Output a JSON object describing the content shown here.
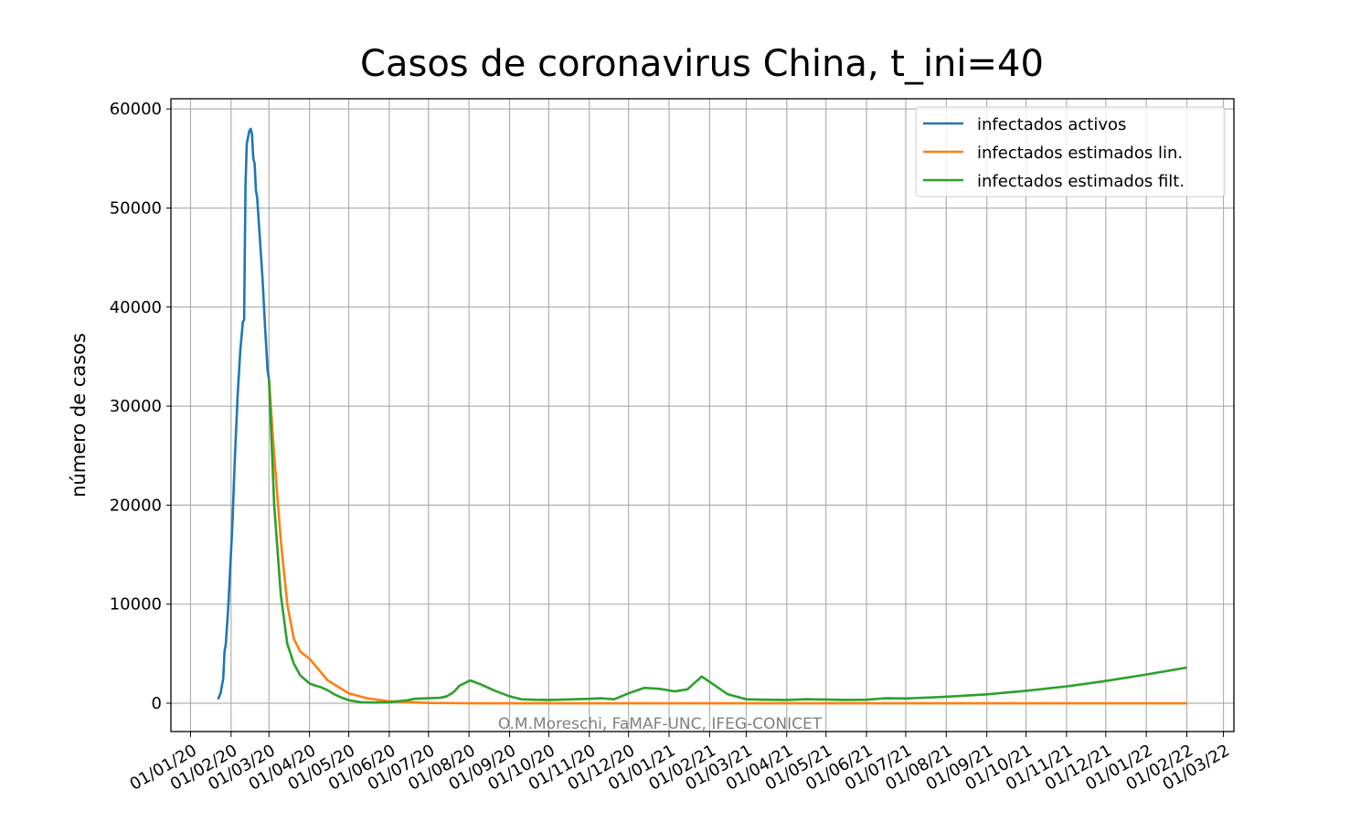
{
  "chart_data": {
    "type": "line",
    "title": "Casos de coronavirus China, t_ini=40",
    "y_label": "número de casos",
    "annotation": "O.M.Moreschi, FaMAF-UNC, IFEG-CONICET",
    "xlim": [
      "2019-12-17",
      "2022-03-09"
    ],
    "ylim": [
      -2860,
      61030
    ],
    "yticks": [
      0,
      10000,
      20000,
      30000,
      40000,
      50000,
      60000
    ],
    "xticks": [
      {
        "value": "2020-01-01",
        "label": "01/01/20"
      },
      {
        "value": "2020-02-01",
        "label": "01/02/20"
      },
      {
        "value": "2020-03-01",
        "label": "01/03/20"
      },
      {
        "value": "2020-04-01",
        "label": "01/04/20"
      },
      {
        "value": "2020-05-01",
        "label": "01/05/20"
      },
      {
        "value": "2020-06-01",
        "label": "01/06/20"
      },
      {
        "value": "2020-07-01",
        "label": "01/07/20"
      },
      {
        "value": "2020-08-01",
        "label": "01/08/20"
      },
      {
        "value": "2020-09-01",
        "label": "01/09/20"
      },
      {
        "value": "2020-10-01",
        "label": "01/10/20"
      },
      {
        "value": "2020-11-01",
        "label": "01/11/20"
      },
      {
        "value": "2020-12-01",
        "label": "01/12/20"
      },
      {
        "value": "2021-01-01",
        "label": "01/01/21"
      },
      {
        "value": "2021-02-01",
        "label": "01/02/21"
      },
      {
        "value": "2021-03-01",
        "label": "01/03/21"
      },
      {
        "value": "2021-04-01",
        "label": "01/04/21"
      },
      {
        "value": "2021-05-01",
        "label": "01/05/21"
      },
      {
        "value": "2021-06-01",
        "label": "01/06/21"
      },
      {
        "value": "2021-07-01",
        "label": "01/07/21"
      },
      {
        "value": "2021-08-01",
        "label": "01/08/21"
      },
      {
        "value": "2021-09-01",
        "label": "01/09/21"
      },
      {
        "value": "2021-10-01",
        "label": "01/10/21"
      },
      {
        "value": "2021-11-01",
        "label": "01/11/21"
      },
      {
        "value": "2021-12-01",
        "label": "01/12/21"
      },
      {
        "value": "2022-01-01",
        "label": "01/01/22"
      },
      {
        "value": "2022-02-01",
        "label": "01/02/22"
      },
      {
        "value": "2022-03-01",
        "label": "01/03/22"
      }
    ],
    "grid": true,
    "legend": "upper right",
    "series": [
      {
        "name": "infectados activos",
        "color": "#1f77b4",
        "x": [
          "2020-01-22",
          "2020-01-24",
          "2020-01-26",
          "2020-01-27",
          "2020-01-28",
          "2020-01-30",
          "2020-02-02",
          "2020-02-04",
          "2020-02-06",
          "2020-02-08",
          "2020-02-10",
          "2020-02-11",
          "2020-02-12",
          "2020-02-13",
          "2020-02-15",
          "2020-02-16",
          "2020-02-17",
          "2020-02-18",
          "2020-02-19",
          "2020-02-20",
          "2020-02-21",
          "2020-02-23",
          "2020-02-25",
          "2020-02-27",
          "2020-02-29",
          "2020-03-01"
        ],
        "values": [
          400,
          1000,
          2500,
          5200,
          6000,
          10000,
          18000,
          25000,
          31000,
          35500,
          38500,
          38700,
          52000,
          56500,
          57800,
          58000,
          57500,
          55000,
          54500,
          51800,
          51000,
          47000,
          43000,
          38000,
          33500,
          32700
        ]
      },
      {
        "name": "infectados estimados lin.",
        "color": "#ff7f0e",
        "x": [
          "2020-03-01",
          "2020-03-05",
          "2020-03-10",
          "2020-03-15",
          "2020-03-20",
          "2020-03-25",
          "2020-04-01",
          "2020-04-15",
          "2020-05-01",
          "2020-05-15",
          "2020-06-01",
          "2020-07-01",
          "2020-08-01",
          "2021-01-01",
          "2022-02-01"
        ],
        "values": [
          32700,
          25000,
          16500,
          10000,
          6500,
          5200,
          4500,
          2300,
          1000,
          500,
          200,
          30,
          0,
          0,
          0
        ]
      },
      {
        "name": "infectados estimados filt.",
        "color": "#2ca02c",
        "x": [
          "2020-03-01",
          "2020-03-05",
          "2020-03-10",
          "2020-03-15",
          "2020-03-20",
          "2020-03-25",
          "2020-04-01",
          "2020-04-05",
          "2020-04-10",
          "2020-04-15",
          "2020-04-20",
          "2020-04-25",
          "2020-05-01",
          "2020-05-10",
          "2020-05-20",
          "2020-06-01",
          "2020-06-15",
          "2020-06-20",
          "2020-07-01",
          "2020-07-10",
          "2020-07-15",
          "2020-07-20",
          "2020-07-25",
          "2020-08-02",
          "2020-08-10",
          "2020-08-20",
          "2020-09-01",
          "2020-09-10",
          "2020-09-20",
          "2020-10-01",
          "2020-10-15",
          "2020-11-01",
          "2020-11-10",
          "2020-11-20",
          "2020-12-01",
          "2020-12-13",
          "2020-12-25",
          "2021-01-05",
          "2021-01-15",
          "2021-01-26",
          "2021-02-05",
          "2021-02-15",
          "2021-03-01",
          "2021-03-15",
          "2021-04-01",
          "2021-04-15",
          "2021-05-01",
          "2021-05-15",
          "2021-06-01",
          "2021-06-15",
          "2021-07-01",
          "2021-08-01",
          "2021-09-01",
          "2021-10-01",
          "2021-11-01",
          "2021-12-01",
          "2022-01-01",
          "2022-02-01"
        ],
        "values": [
          32700,
          20000,
          11000,
          6000,
          4000,
          2800,
          2000,
          1800,
          1600,
          1300,
          900,
          600,
          300,
          100,
          80,
          100,
          300,
          450,
          500,
          550,
          700,
          1100,
          1800,
          2300,
          1900,
          1300,
          700,
          400,
          350,
          330,
          380,
          450,
          500,
          400,
          1000,
          1550,
          1450,
          1200,
          1400,
          2700,
          1800,
          900,
          400,
          350,
          330,
          400,
          380,
          330,
          350,
          500,
          480,
          650,
          900,
          1250,
          1700,
          2250,
          2900,
          3600
        ]
      }
    ]
  }
}
